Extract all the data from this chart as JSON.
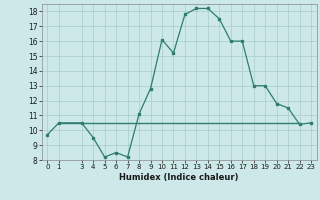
{
  "x": [
    0,
    1,
    3,
    4,
    5,
    6,
    7,
    8,
    9,
    10,
    11,
    12,
    13,
    14,
    15,
    16,
    17,
    18,
    19,
    20,
    21,
    22,
    23
  ],
  "y": [
    9.7,
    10.5,
    10.5,
    9.5,
    8.2,
    8.5,
    8.2,
    11.1,
    12.8,
    16.1,
    15.2,
    17.8,
    18.2,
    18.2,
    17.5,
    16.0,
    16.0,
    13.0,
    13.0,
    11.8,
    11.5,
    10.4,
    10.5
  ],
  "hline_y": 10.5,
  "hline_x_start": 1,
  "hline_x_end": 22,
  "xlabel": "Humidex (Indice chaleur)",
  "xlim": [
    -0.5,
    23.5
  ],
  "ylim": [
    8,
    18.5
  ],
  "yticks": [
    8,
    9,
    10,
    11,
    12,
    13,
    14,
    15,
    16,
    17,
    18
  ],
  "xticks": [
    0,
    1,
    3,
    4,
    5,
    6,
    7,
    8,
    9,
    10,
    11,
    12,
    13,
    14,
    15,
    16,
    17,
    18,
    19,
    20,
    21,
    22,
    23
  ],
  "line_color": "#2e7d6e",
  "bg_color": "#cce8e8",
  "grid_color": "#aacccc"
}
